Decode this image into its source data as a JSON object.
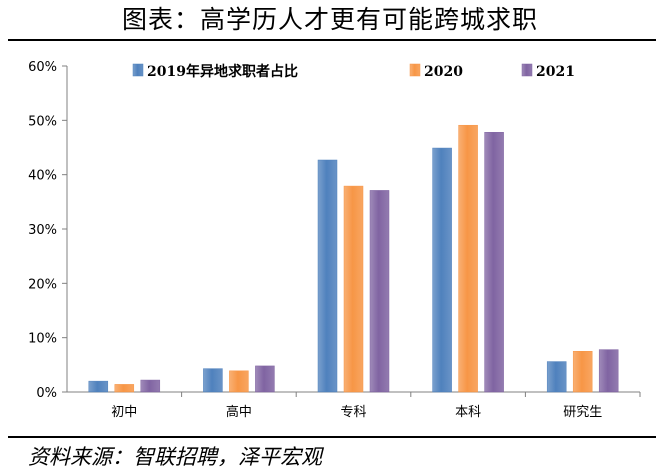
{
  "title": "图表：高学历人才更有可能跨城求职",
  "source": "资料来源：智联招聘，泽平宏观",
  "chart_data": {
    "type": "bar",
    "categories": [
      "初中",
      "高中",
      "专科",
      "本科",
      "研究生"
    ],
    "series": [
      {
        "name": "2019年异地求职者占比",
        "color": "#4f81bd",
        "values": [
          2.0,
          4.3,
          42.7,
          44.9,
          5.6
        ]
      },
      {
        "name": "2020",
        "color": "#f79646",
        "values": [
          1.4,
          3.9,
          37.9,
          49.1,
          7.5
        ]
      },
      {
        "name": "2021",
        "color": "#8064a2",
        "values": [
          2.2,
          4.8,
          37.1,
          47.8,
          7.8
        ]
      }
    ],
    "ylim": [
      0,
      60
    ],
    "yticks": [
      0,
      10,
      20,
      30,
      40,
      50,
      60
    ],
    "ytick_labels": [
      "0%",
      "10%",
      "20%",
      "30%",
      "40%",
      "50%",
      "60%"
    ],
    "unit": "%",
    "grid": false,
    "legend": "top"
  }
}
